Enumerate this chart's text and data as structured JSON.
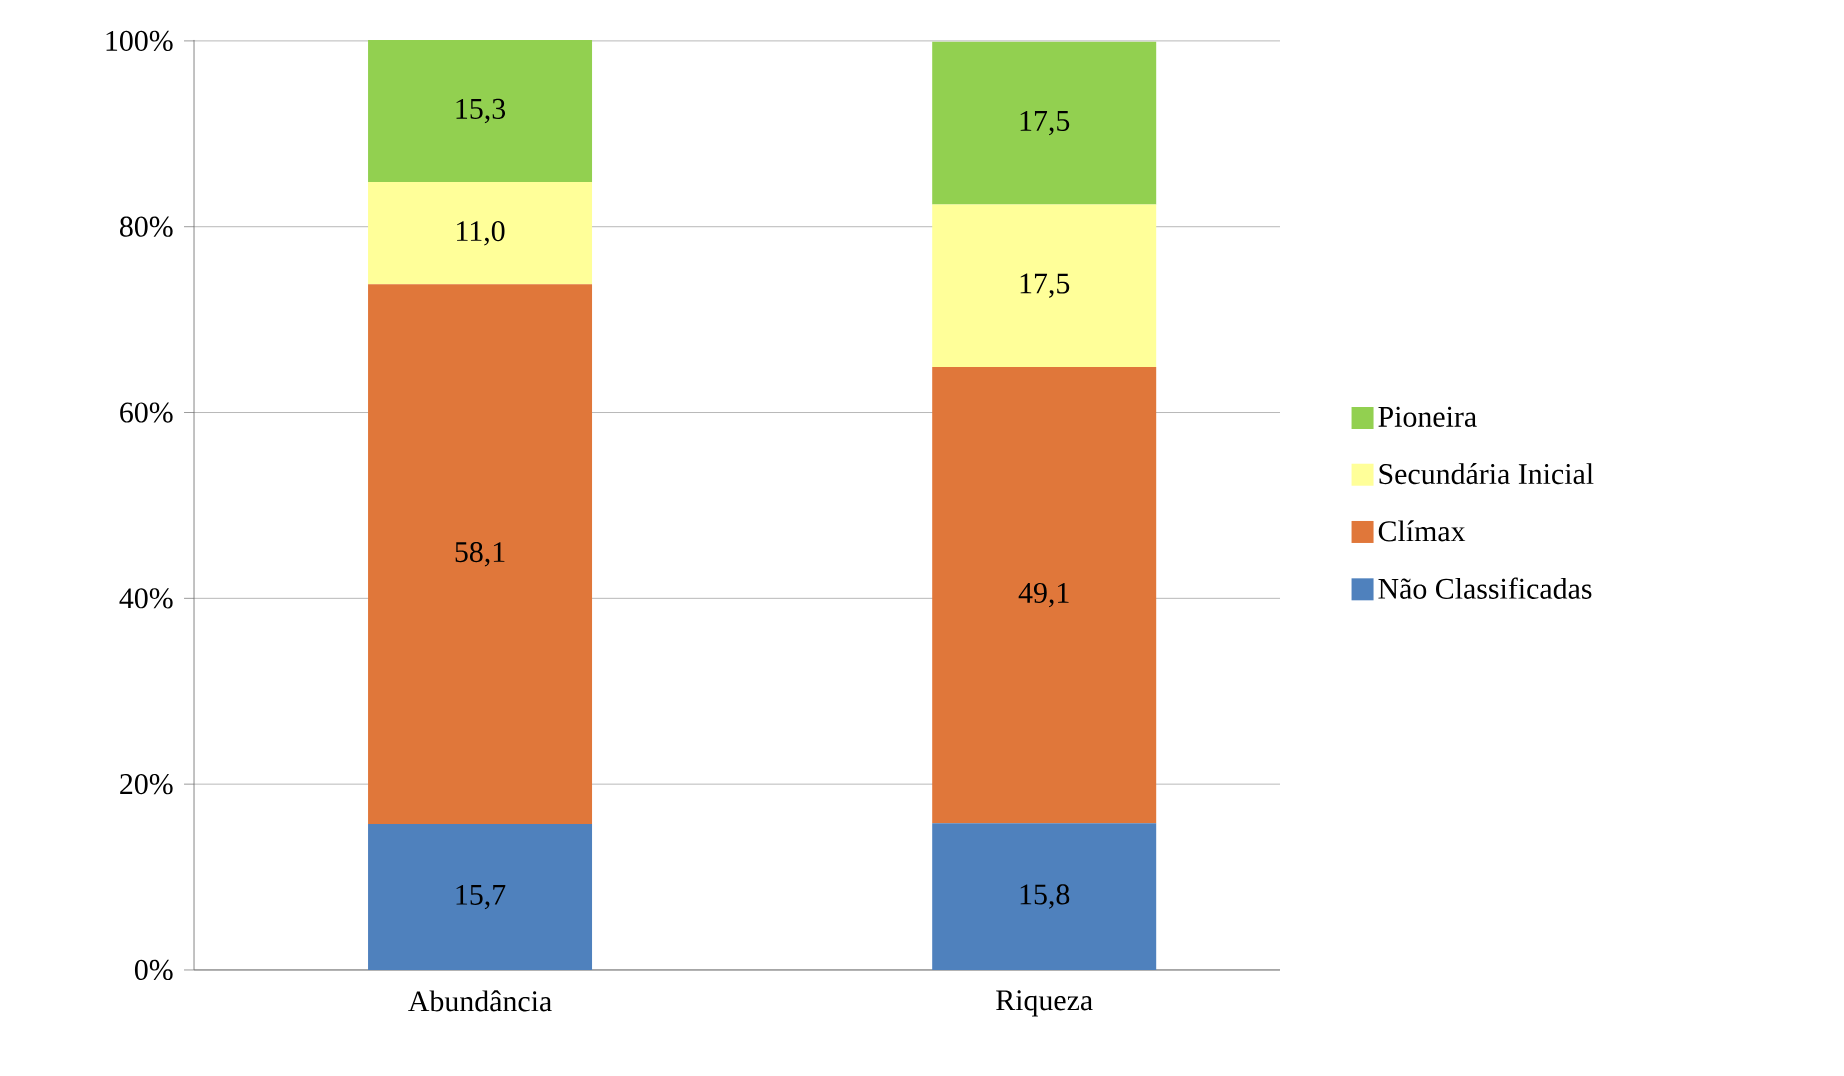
{
  "chart_data": {
    "type": "bar",
    "stacked": true,
    "categories": [
      "Abundância",
      "Riqueza"
    ],
    "series": [
      {
        "name": "Não Classificadas",
        "color": "#4f81bd",
        "values": [
          15.7,
          15.8
        ],
        "value_labels": [
          "15,7",
          "15,8"
        ]
      },
      {
        "name": "Clímax",
        "color": "#e0773a",
        "values": [
          58.1,
          49.1
        ],
        "value_labels": [
          "58,1",
          "49,1"
        ]
      },
      {
        "name": "Secundária Inicial",
        "color": "#ffff99",
        "values": [
          11.0,
          17.5
        ],
        "value_labels": [
          "11,0",
          "17,5"
        ]
      },
      {
        "name": "Pioneira",
        "color": "#92d050",
        "values": [
          15.3,
          17.5
        ],
        "value_labels": [
          "15,3",
          "17,5"
        ]
      }
    ],
    "ylim": [
      0,
      100.1
    ],
    "yticks": [
      {
        "value": 0,
        "label": "0%"
      },
      {
        "value": 20,
        "label": "20%"
      },
      {
        "value": 40,
        "label": "40%"
      },
      {
        "value": 60,
        "label": "60%"
      },
      {
        "value": 80,
        "label": "80%"
      },
      {
        "value": 100,
        "label": "100%"
      }
    ],
    "grid": "y",
    "legend": "right"
  }
}
